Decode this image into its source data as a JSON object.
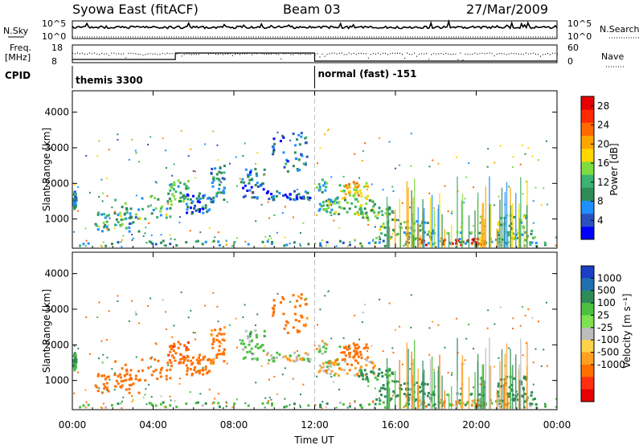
{
  "header": {
    "station": "Syowa East (fitACF)",
    "beam": "Beam 03",
    "date": "27/Mar/2009"
  },
  "top_panels": {
    "nsky_label": "N.Sky",
    "nsearch_label": "N.Search",
    "nsky_ticks": [
      "10^5",
      "10^0"
    ],
    "nsearch_ticks": [
      "10^5",
      "10^0"
    ],
    "freq_label": "Freq.",
    "freq_unit": "[MHz]",
    "freq_ticks": [
      "18",
      "8"
    ],
    "nave_label": "Nave",
    "nave_ticks": [
      "60",
      "0"
    ],
    "cpid_label": "CPID",
    "modes": [
      {
        "name": "themis 3300",
        "start_hour": 0
      },
      {
        "name": "normal (fast) -151",
        "start_hour": 12
      }
    ]
  },
  "colors": {
    "power": [
      "#0000ff",
      "#2a52be",
      "#1e90ff",
      "#2e8b57",
      "#3cb371",
      "#7fdc3f",
      "#ffd700",
      "#ffa500",
      "#ff6a00",
      "#ff2a00",
      "#e60000"
    ],
    "velocity_pos": [
      "#1a3fc4",
      "#2070b0",
      "#2e8b57",
      "#4cc040",
      "#7fe050"
    ],
    "velocity_neg": [
      "#ffd24a",
      "#ffa020",
      "#ff7000",
      "#ff3010",
      "#e60000"
    ],
    "ground": "#bdbdbd",
    "mode_change": "#bbbbbb"
  },
  "chart_data": [
    {
      "type": "heatmap",
      "name": "power",
      "ylabel": "Slant Range [km]",
      "ylim": [
        180,
        4600
      ],
      "yticks": [
        1000,
        2000,
        3000,
        4000
      ],
      "xlim_hours": [
        0,
        24
      ],
      "xticks": [
        "00:00",
        "04:00",
        "08:00",
        "12:00",
        "16:00",
        "20:00",
        "00:00"
      ],
      "colorbar": {
        "label": "Power [dB]",
        "ticks": [
          4,
          8,
          12,
          16,
          20,
          24,
          28
        ],
        "range": [
          0,
          30
        ]
      }
    },
    {
      "type": "heatmap",
      "name": "velocity",
      "ylabel": "Slant Range [km]",
      "ylim": [
        180,
        4600
      ],
      "yticks": [
        1000,
        2000,
        3000,
        4000
      ],
      "xlim_hours": [
        0,
        24
      ],
      "xticks": [
        "00:00",
        "04:00",
        "08:00",
        "12:00",
        "16:00",
        "20:00",
        "00:00"
      ],
      "xlabel": "Time UT",
      "colorbar": {
        "label": "Velocity [m s⁻¹]",
        "ticks": [
          1000,
          500,
          100,
          25,
          -25,
          -100,
          -500,
          -1000
        ]
      }
    }
  ],
  "echo_regions": [
    {
      "t0": 0.0,
      "t1": 0.15,
      "r0": 1250,
      "r1": 1750,
      "p": 8,
      "v": 100
    },
    {
      "t0": 1.0,
      "t1": 3.3,
      "r0": 600,
      "r1": 1150,
      "p": 10,
      "v": -300
    },
    {
      "t0": 2.0,
      "t1": 4.9,
      "r0": 950,
      "r1": 1600,
      "p": 12,
      "v": -250
    },
    {
      "t0": 4.7,
      "t1": 5.7,
      "r0": 1450,
      "r1": 2050,
      "p": 12,
      "v": -400
    },
    {
      "t0": 5.6,
      "t1": 6.8,
      "r0": 1100,
      "r1": 1700,
      "p": 6,
      "v": -200
    },
    {
      "t0": 6.8,
      "t1": 7.5,
      "r0": 1400,
      "r1": 2500,
      "p": 8,
      "v": -150
    },
    {
      "t0": 8.3,
      "t1": 9.5,
      "r0": 1500,
      "r1": 2400,
      "p": 6,
      "v": 50
    },
    {
      "t0": 9.5,
      "t1": 11.8,
      "r0": 1500,
      "r1": 1750,
      "p": 6,
      "v": 0
    },
    {
      "t0": 9.7,
      "t1": 11.6,
      "r0": 2300,
      "r1": 3400,
      "p": 6,
      "v": -150
    },
    {
      "t0": 12.0,
      "t1": 13.2,
      "r0": 1100,
      "r1": 2100,
      "p": 10,
      "v": 0
    },
    {
      "t0": 12.2,
      "t1": 15.0,
      "r0": 1100,
      "r1": 1550,
      "p": 14,
      "v": -60
    },
    {
      "t0": 13.3,
      "t1": 14.6,
      "r0": 1500,
      "r1": 2000,
      "p": 18,
      "v": -300
    },
    {
      "t0": 14.0,
      "t1": 16.0,
      "r0": 900,
      "r1": 1300,
      "p": 14,
      "v": 120
    },
    {
      "t0": 15.0,
      "t1": 18.0,
      "r0": 400,
      "r1": 900,
      "p": 12,
      "v": 200
    },
    {
      "t0": 16.0,
      "t1": 23.0,
      "r0": 250,
      "r1": 650,
      "p": 10,
      "v": 150
    },
    {
      "t0": 17.0,
      "t1": 20.5,
      "r0": 220,
      "r1": 420,
      "p": 28,
      "v": -80
    },
    {
      "t0": 21.0,
      "t1": 22.5,
      "r0": 300,
      "r1": 1100,
      "p": 12,
      "v": 200
    },
    {
      "t0": 0.0,
      "t1": 24.0,
      "r0": 200,
      "r1": 350,
      "p": 8,
      "v": 80
    }
  ]
}
